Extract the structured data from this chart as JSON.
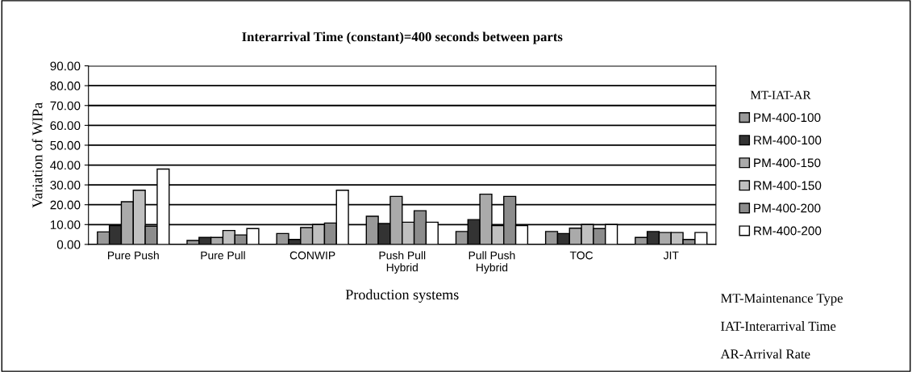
{
  "chart_data": {
    "type": "bar",
    "title": "Interarrival Time (constant)=400 seconds between parts",
    "xlabel": "Production systems",
    "ylabel": "Variation of WIPa",
    "legend_title": "MT-IAT-AR",
    "categories": [
      "Pure Push",
      "Pure Pull",
      "CONWIP",
      "Push Pull\nHybrid",
      "Pull Push\nHybrid",
      "TOC",
      "JIT"
    ],
    "series": [
      {
        "name": "PM-400-100",
        "color": "#999999",
        "values": [
          6.3,
          2.0,
          5.5,
          14.2,
          6.5,
          6.5,
          3.5
        ]
      },
      {
        "name": "RM-400-100",
        "color": "#333333",
        "values": [
          9.5,
          3.5,
          2.5,
          10.5,
          12.5,
          5.5,
          6.5
        ]
      },
      {
        "name": "PM-400-150",
        "color": "#aaaaaa",
        "values": [
          21.5,
          3.5,
          8.5,
          24.2,
          25.3,
          8.2,
          6.0
        ]
      },
      {
        "name": "RM-400-150",
        "color": "#c0c0c0",
        "values": [
          27.3,
          7.0,
          10.0,
          11.2,
          9.5,
          10.0,
          6.0
        ]
      },
      {
        "name": "PM-400-200",
        "color": "#8c8c8c",
        "values": [
          9.2,
          4.8,
          10.8,
          17.0,
          24.2,
          8.0,
          2.5
        ]
      },
      {
        "name": "RM-400-200",
        "color": "#ffffff",
        "values": [
          38.0,
          8.0,
          27.3,
          11.2,
          9.5,
          10.0,
          6.0
        ]
      }
    ],
    "ylim": [
      0,
      90
    ],
    "yticks": [
      {
        "value": 0,
        "label": "0.00"
      },
      {
        "value": 10,
        "label": "10.00"
      },
      {
        "value": 20,
        "label": "20.00"
      },
      {
        "value": 30,
        "label": "30.00"
      },
      {
        "value": 40,
        "label": "40.00"
      },
      {
        "value": 50,
        "label": "50.00"
      },
      {
        "value": 60,
        "label": "60.00"
      },
      {
        "value": 70,
        "label": "70.00"
      },
      {
        "value": 80,
        "label": "80.00"
      },
      {
        "value": 90,
        "label": "90.00"
      }
    ],
    "grid": "y",
    "legend": "right",
    "annotations": [
      "MT-Maintenance Type",
      "IAT-Interarrival Time",
      "AR-Arrival Rate"
    ]
  }
}
